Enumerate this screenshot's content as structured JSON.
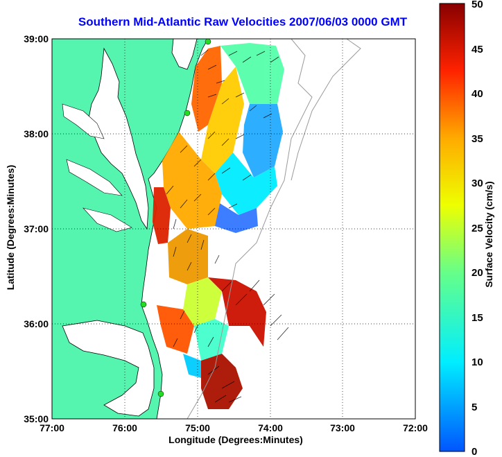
{
  "title": "Southern Mid-Atlantic Raw Velocities 2007/06/03 0000 GMT",
  "axes": {
    "xlabel": "Longitude (Degrees:Minutes)",
    "ylabel": "Latitude (Degrees:Minutes)",
    "xticks": [
      "77:00",
      "76:00",
      "75:00",
      "74:00",
      "73:00",
      "72:00"
    ],
    "yticks": [
      "39:00",
      "38:00",
      "37:00",
      "36:00",
      "35:00"
    ]
  },
  "colorbar": {
    "label": "Surface Velocity (cm/s)",
    "ticks": [
      "50",
      "45",
      "40",
      "35",
      "30",
      "25",
      "20",
      "15",
      "10",
      "5",
      "0"
    ]
  },
  "colors": {
    "land": "#55f5b0",
    "title": "#0000ff",
    "station": "#22dd22"
  }
}
